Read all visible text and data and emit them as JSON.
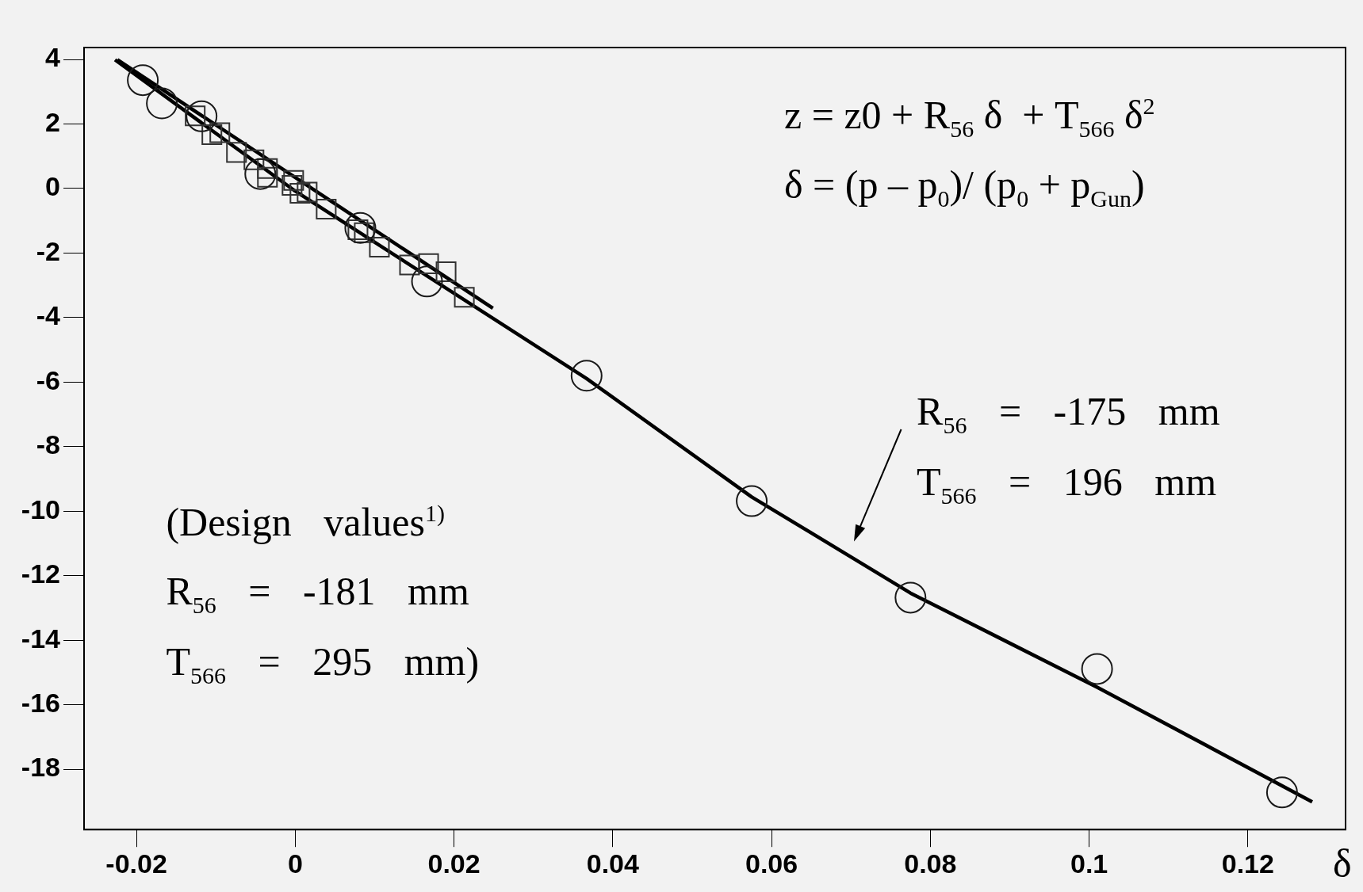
{
  "chart_data": {
    "type": "scatter",
    "xlabel": "δ",
    "xlim": [
      -0.0266,
      0.1323
    ],
    "ylim": [
      -19.87,
      4.37
    ],
    "xticks": [
      -0.02,
      0,
      0.02,
      0.04,
      0.06,
      0.08,
      0.1,
      0.12
    ],
    "yticks": [
      4,
      2,
      0,
      -2,
      -4,
      -6,
      -8,
      -10,
      -12,
      -14,
      -16,
      -18
    ],
    "grid": false,
    "legend": false,
    "series": [
      {
        "marker": "circle",
        "color": "#1a1a1a",
        "x": [
          -0.0192,
          -0.0168,
          -0.0118,
          -0.0044,
          0.0082,
          0.0166,
          0.0367,
          0.0575,
          0.0775,
          0.101,
          0.1243
        ],
        "values": [
          3.36,
          2.64,
          2.24,
          0.45,
          -1.22,
          -2.88,
          -5.8,
          -9.69,
          -12.68,
          -14.89,
          -18.72
        ]
      },
      {
        "marker": "square",
        "color": "#333333",
        "x": [
          -0.0126,
          -0.0095,
          -0.0105,
          -0.0074,
          -0.0052,
          -0.0035,
          -0.0035,
          -0.0002,
          -0.0004,
          0.0006,
          0.0015,
          0.0039,
          0.0079,
          0.0087,
          0.0106,
          0.0144,
          0.0168,
          0.019,
          0.0213
        ],
        "values": [
          2.25,
          1.73,
          1.67,
          1.12,
          0.89,
          0.62,
          0.35,
          0.25,
          0.1,
          -0.15,
          -0.11,
          -0.64,
          -1.28,
          -1.37,
          -1.82,
          -2.37,
          -2.33,
          -2.58,
          -3.37
        ]
      },
      {
        "type": "line",
        "marker": "none",
        "line_style": "solid",
        "color": "#000000",
        "x": [
          -0.0227,
          0,
          0.0367,
          0.0575,
          0.0775,
          0.1011,
          0.1281
        ],
        "values": [
          3.99,
          -0.08,
          -5.89,
          -9.56,
          -12.54,
          -15.47,
          -19.01
        ]
      },
      {
        "type": "line",
        "marker": "none",
        "line_style": "solid",
        "color": "#000000",
        "x": [
          -0.0224,
          0.0249
        ],
        "values": [
          3.99,
          -3.71
        ]
      }
    ],
    "annotations": [
      "z = z0 + R$_{56}$ δ  + T$_{566}$ δ$^{2}$",
      "δ = (p – p$_{0}$)/ (p$_{0}$ + p$_{Gun}$)",
      "R$_{56}$ = -175 mm",
      "T$_{566}$ = 196 mm",
      "(Design values$^{1)}$",
      "R$_{56}$ = -181 mm",
      "T$_{566}$ = 295 mm)"
    ]
  }
}
